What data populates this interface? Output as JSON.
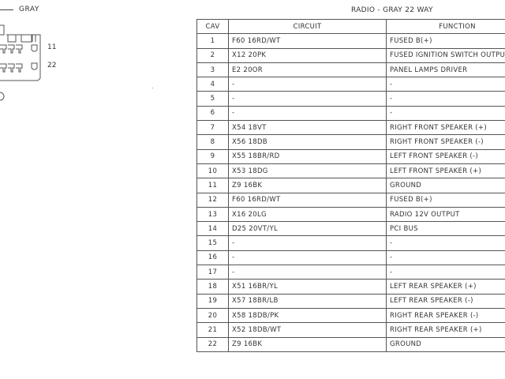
{
  "connector": {
    "color_label": "GRAY",
    "pin_labels": [
      "11",
      "22"
    ]
  },
  "table": {
    "title": "RADIO - GRAY 22 WAY",
    "headers": [
      "CAV",
      "CIRCUIT",
      "FUNCTION"
    ],
    "rows": [
      [
        "1",
        "F60 16RD/WT",
        "FUSED B(+)"
      ],
      [
        "2",
        "X12 20PK",
        "FUSED IGNITION SWITCH OUTPUT"
      ],
      [
        "3",
        "E2 20OR",
        "PANEL LAMPS DRIVER"
      ],
      [
        "4",
        "-",
        "-"
      ],
      [
        "5",
        "-",
        "-"
      ],
      [
        "6",
        "-",
        "-"
      ],
      [
        "7",
        "X54 18VT",
        "RIGHT FRONT SPEAKER (+)"
      ],
      [
        "8",
        "X56 18DB",
        "RIGHT FRONT SPEAKER (-)"
      ],
      [
        "9",
        "X55 18BR/RD",
        "LEFT FRONT SPEAKER (-)"
      ],
      [
        "10",
        "X53 18DG",
        "LEFT FRONT SPEAKER (+)"
      ],
      [
        "11",
        "Z9 16BK",
        "GROUND"
      ],
      [
        "12",
        "F60 16RD/WT",
        "FUSED B(+)"
      ],
      [
        "13",
        "X16 20LG",
        "RADIO 12V OUTPUT"
      ],
      [
        "14",
        "D25 20VT/YL",
        "PCI BUS"
      ],
      [
        "15",
        "-",
        "-"
      ],
      [
        "16",
        "-",
        "-"
      ],
      [
        "17",
        "-",
        "-"
      ],
      [
        "18",
        "X51 16BR/YL",
        "LEFT REAR SPEAKER (+)"
      ],
      [
        "19",
        "X57 18BR/LB",
        "LEFT REAR SPEAKER (-)"
      ],
      [
        "20",
        "X58 18DB/PK",
        "RIGHT REAR SPEAKER (-)"
      ],
      [
        "21",
        "X52 18DB/WT",
        "RIGHT REAR SPEAKER (+)"
      ],
      [
        "22",
        "Z9 16BK",
        "GROUND"
      ]
    ]
  }
}
